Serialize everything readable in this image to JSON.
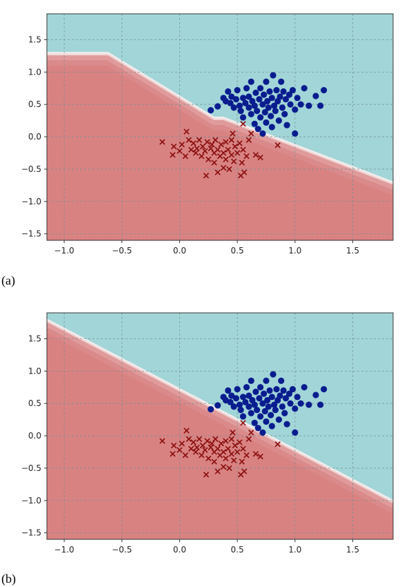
{
  "chart_data": [
    {
      "type": "scatter",
      "panel_label": "(a)",
      "xlim": [
        -1.15,
        1.85
      ],
      "ylim": [
        -1.6,
        1.9
      ],
      "xticks": [
        -1.0,
        -0.5,
        0.0,
        0.5,
        1.0,
        1.5
      ],
      "xtick_labels": [
        "−1.0",
        "−0.5",
        "0.0",
        "0.5",
        "1.0",
        "1.5"
      ],
      "yticks": [
        -1.5,
        -1.0,
        -0.5,
        0.0,
        0.5,
        1.0,
        1.5
      ],
      "ytick_labels": [
        "−1.5",
        "−1.0",
        "−0.5",
        "0.0",
        "0.5",
        "1.0",
        "1.5"
      ],
      "grid": true,
      "background": "decision regions: teal above boundary, red below",
      "region_colors": {
        "upper": "#a2d5d8",
        "lower": "#d98282",
        "boundary": "#f4eeee"
      },
      "decision_boundary": [
        [
          -1.15,
          1.3
        ],
        [
          -0.62,
          1.3
        ],
        [
          0.3,
          0.3
        ],
        [
          0.38,
          0.3
        ],
        [
          1.85,
          -0.7
        ]
      ],
      "series": [
        {
          "marker": "circle",
          "color": "#0a1d8f",
          "points": [
            [
              0.27,
              0.41
            ],
            [
              0.33,
              0.47
            ],
            [
              0.38,
              0.6
            ],
            [
              0.4,
              0.55
            ],
            [
              0.42,
              0.7
            ],
            [
              0.44,
              0.52
            ],
            [
              0.45,
              0.62
            ],
            [
              0.47,
              0.45
            ],
            [
              0.49,
              0.58
            ],
            [
              0.5,
              0.72
            ],
            [
              0.52,
              0.48
            ],
            [
              0.53,
              0.4
            ],
            [
              0.55,
              0.6
            ],
            [
              0.55,
              0.3
            ],
            [
              0.57,
              0.52
            ],
            [
              0.58,
              0.75
            ],
            [
              0.6,
              0.45
            ],
            [
              0.6,
              0.62
            ],
            [
              0.62,
              0.35
            ],
            [
              0.62,
              0.85
            ],
            [
              0.63,
              0.55
            ],
            [
              0.65,
              0.2
            ],
            [
              0.65,
              0.48
            ],
            [
              0.66,
              0.68
            ],
            [
              0.67,
              0.4
            ],
            [
              0.68,
              0.12
            ],
            [
              0.69,
              0.58
            ],
            [
              0.7,
              0.3
            ],
            [
              0.7,
              0.75
            ],
            [
              0.72,
              0.5
            ],
            [
              0.72,
              0.05
            ],
            [
              0.73,
              0.65
            ],
            [
              0.74,
              0.38
            ],
            [
              0.75,
              0.22
            ],
            [
              0.75,
              0.85
            ],
            [
              0.76,
              0.55
            ],
            [
              0.77,
              0.45
            ],
            [
              0.78,
              0.7
            ],
            [
              0.79,
              0.32
            ],
            [
              0.8,
              0.6
            ],
            [
              0.8,
              0.15
            ],
            [
              0.81,
              0.95
            ],
            [
              0.82,
              0.48
            ],
            [
              0.83,
              0.4
            ],
            [
              0.84,
              0.72
            ],
            [
              0.85,
              0.55
            ],
            [
              0.86,
              0.25
            ],
            [
              0.87,
              0.62
            ],
            [
              0.88,
              0.85
            ],
            [
              0.89,
              0.45
            ],
            [
              0.9,
              0.7
            ],
            [
              0.91,
              0.35
            ],
            [
              0.92,
              0.58
            ],
            [
              0.93,
              0.18
            ],
            [
              0.95,
              0.65
            ],
            [
              0.96,
              0.5
            ],
            [
              0.98,
              0.72
            ],
            [
              1.0,
              0.42
            ],
            [
              1.0,
              0.05
            ],
            [
              1.02,
              0.6
            ],
            [
              1.05,
              0.5
            ],
            [
              1.08,
              0.75
            ],
            [
              1.12,
              0.48
            ],
            [
              1.18,
              0.63
            ],
            [
              1.22,
              0.48
            ],
            [
              1.25,
              0.72
            ]
          ]
        },
        {
          "marker": "x",
          "color": "#8b1010",
          "points": [
            [
              -0.15,
              -0.08
            ],
            [
              -0.06,
              -0.28
            ],
            [
              -0.05,
              -0.15
            ],
            [
              0.0,
              -0.22
            ],
            [
              0.02,
              -0.12
            ],
            [
              0.05,
              -0.3
            ],
            [
              0.06,
              0.08
            ],
            [
              0.08,
              -0.05
            ],
            [
              0.1,
              -0.2
            ],
            [
              0.12,
              -0.1
            ],
            [
              0.14,
              -0.25
            ],
            [
              0.15,
              -0.18
            ],
            [
              0.17,
              -0.05
            ],
            [
              0.19,
              -0.3
            ],
            [
              0.2,
              -0.15
            ],
            [
              0.22,
              -0.22
            ],
            [
              0.23,
              -0.6
            ],
            [
              0.24,
              -0.08
            ],
            [
              0.25,
              -0.35
            ],
            [
              0.27,
              -0.18
            ],
            [
              0.28,
              -0.12
            ],
            [
              0.3,
              -0.4
            ],
            [
              0.3,
              -0.25
            ],
            [
              0.31,
              -0.05
            ],
            [
              0.33,
              -0.2
            ],
            [
              0.33,
              -0.55
            ],
            [
              0.35,
              -0.3
            ],
            [
              0.36,
              -0.12
            ],
            [
              0.38,
              -0.48
            ],
            [
              0.38,
              -0.25
            ],
            [
              0.4,
              -0.08
            ],
            [
              0.4,
              -0.35
            ],
            [
              0.42,
              -0.2
            ],
            [
              0.43,
              -0.5
            ],
            [
              0.45,
              -0.28
            ],
            [
              0.45,
              -0.05
            ],
            [
              0.46,
              0.05
            ],
            [
              0.47,
              -0.38
            ],
            [
              0.48,
              -0.15
            ],
            [
              0.5,
              -0.25
            ],
            [
              0.52,
              -0.1
            ],
            [
              0.53,
              -0.6
            ],
            [
              0.54,
              -0.4
            ],
            [
              0.55,
              -0.2
            ],
            [
              0.55,
              0.2
            ],
            [
              0.56,
              -0.55
            ],
            [
              0.58,
              -0.3
            ],
            [
              0.6,
              -0.05
            ],
            [
              0.62,
              0.05
            ],
            [
              0.66,
              -0.28
            ],
            [
              0.7,
              -0.32
            ],
            [
              0.85,
              -0.13
            ]
          ]
        }
      ]
    },
    {
      "type": "scatter",
      "panel_label": "(b)",
      "xlim": [
        -1.15,
        1.85
      ],
      "ylim": [
        -1.6,
        1.9
      ],
      "xticks": [
        -1.0,
        -0.5,
        0.0,
        0.5,
        1.0,
        1.5
      ],
      "xtick_labels": [
        "−1.0",
        "−0.5",
        "0.0",
        "0.5",
        "1.0",
        "1.5"
      ],
      "yticks": [
        -1.5,
        -1.0,
        -0.5,
        0.0,
        0.5,
        1.0,
        1.5
      ],
      "ytick_labels": [
        "−1.5",
        "−1.0",
        "−0.5",
        "0.0",
        "0.5",
        "1.0",
        "1.5"
      ],
      "grid": true,
      "background": "decision regions: teal above boundary, red below",
      "region_colors": {
        "upper": "#a2d5d8",
        "lower": "#d98282",
        "boundary": "#f4eeee"
      },
      "decision_boundary": [
        [
          -1.15,
          1.8
        ],
        [
          1.85,
          -1.0
        ]
      ],
      "series": [
        {
          "marker": "circle",
          "color": "#0a1d8f",
          "points": [
            [
              0.27,
              0.41
            ],
            [
              0.33,
              0.47
            ],
            [
              0.38,
              0.6
            ],
            [
              0.4,
              0.55
            ],
            [
              0.42,
              0.7
            ],
            [
              0.44,
              0.52
            ],
            [
              0.45,
              0.62
            ],
            [
              0.47,
              0.45
            ],
            [
              0.49,
              0.58
            ],
            [
              0.5,
              0.72
            ],
            [
              0.52,
              0.48
            ],
            [
              0.53,
              0.4
            ],
            [
              0.55,
              0.6
            ],
            [
              0.55,
              0.3
            ],
            [
              0.57,
              0.52
            ],
            [
              0.58,
              0.75
            ],
            [
              0.6,
              0.45
            ],
            [
              0.6,
              0.62
            ],
            [
              0.62,
              0.35
            ],
            [
              0.62,
              0.85
            ],
            [
              0.63,
              0.55
            ],
            [
              0.65,
              0.2
            ],
            [
              0.65,
              0.48
            ],
            [
              0.66,
              0.68
            ],
            [
              0.67,
              0.4
            ],
            [
              0.68,
              0.12
            ],
            [
              0.69,
              0.58
            ],
            [
              0.7,
              0.3
            ],
            [
              0.7,
              0.75
            ],
            [
              0.72,
              0.5
            ],
            [
              0.72,
              0.05
            ],
            [
              0.73,
              0.65
            ],
            [
              0.74,
              0.38
            ],
            [
              0.75,
              0.22
            ],
            [
              0.75,
              0.85
            ],
            [
              0.76,
              0.55
            ],
            [
              0.77,
              0.45
            ],
            [
              0.78,
              0.7
            ],
            [
              0.79,
              0.32
            ],
            [
              0.8,
              0.6
            ],
            [
              0.8,
              0.15
            ],
            [
              0.81,
              0.95
            ],
            [
              0.82,
              0.48
            ],
            [
              0.83,
              0.4
            ],
            [
              0.84,
              0.72
            ],
            [
              0.85,
              0.55
            ],
            [
              0.86,
              0.25
            ],
            [
              0.87,
              0.62
            ],
            [
              0.88,
              0.85
            ],
            [
              0.89,
              0.45
            ],
            [
              0.9,
              0.7
            ],
            [
              0.91,
              0.35
            ],
            [
              0.92,
              0.58
            ],
            [
              0.93,
              0.18
            ],
            [
              0.95,
              0.65
            ],
            [
              0.96,
              0.5
            ],
            [
              0.98,
              0.72
            ],
            [
              1.0,
              0.42
            ],
            [
              1.0,
              0.05
            ],
            [
              1.02,
              0.6
            ],
            [
              1.05,
              0.5
            ],
            [
              1.08,
              0.75
            ],
            [
              1.12,
              0.48
            ],
            [
              1.18,
              0.63
            ],
            [
              1.22,
              0.48
            ],
            [
              1.25,
              0.72
            ]
          ]
        },
        {
          "marker": "x",
          "color": "#8b1010",
          "points": [
            [
              -0.15,
              -0.08
            ],
            [
              -0.06,
              -0.28
            ],
            [
              -0.05,
              -0.15
            ],
            [
              0.0,
              -0.22
            ],
            [
              0.02,
              -0.12
            ],
            [
              0.05,
              -0.3
            ],
            [
              0.06,
              0.08
            ],
            [
              0.08,
              -0.05
            ],
            [
              0.1,
              -0.2
            ],
            [
              0.12,
              -0.1
            ],
            [
              0.14,
              -0.25
            ],
            [
              0.15,
              -0.18
            ],
            [
              0.17,
              -0.05
            ],
            [
              0.19,
              -0.3
            ],
            [
              0.2,
              -0.15
            ],
            [
              0.22,
              -0.22
            ],
            [
              0.23,
              -0.6
            ],
            [
              0.24,
              -0.08
            ],
            [
              0.25,
              -0.35
            ],
            [
              0.27,
              -0.18
            ],
            [
              0.28,
              -0.12
            ],
            [
              0.3,
              -0.4
            ],
            [
              0.3,
              -0.25
            ],
            [
              0.31,
              -0.05
            ],
            [
              0.33,
              -0.2
            ],
            [
              0.33,
              -0.55
            ],
            [
              0.35,
              -0.3
            ],
            [
              0.36,
              -0.12
            ],
            [
              0.38,
              -0.48
            ],
            [
              0.38,
              -0.25
            ],
            [
              0.4,
              -0.08
            ],
            [
              0.4,
              -0.35
            ],
            [
              0.42,
              -0.2
            ],
            [
              0.43,
              -0.5
            ],
            [
              0.45,
              -0.28
            ],
            [
              0.45,
              -0.05
            ],
            [
              0.46,
              0.05
            ],
            [
              0.47,
              -0.38
            ],
            [
              0.48,
              -0.15
            ],
            [
              0.5,
              -0.25
            ],
            [
              0.52,
              -0.1
            ],
            [
              0.53,
              -0.6
            ],
            [
              0.54,
              -0.4
            ],
            [
              0.55,
              -0.2
            ],
            [
              0.55,
              0.2
            ],
            [
              0.56,
              -0.55
            ],
            [
              0.58,
              -0.3
            ],
            [
              0.6,
              -0.05
            ],
            [
              0.62,
              0.05
            ],
            [
              0.66,
              -0.28
            ],
            [
              0.7,
              -0.32
            ],
            [
              0.85,
              -0.13
            ]
          ]
        }
      ]
    }
  ]
}
